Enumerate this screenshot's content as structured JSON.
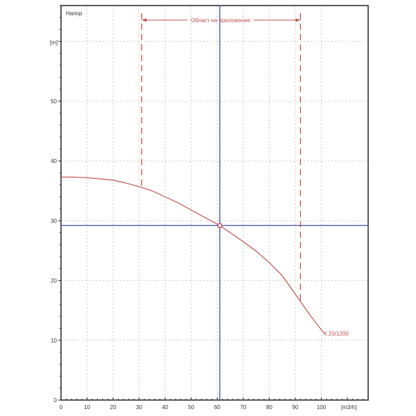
{
  "chart_data": {
    "type": "line",
    "title": "Напор",
    "ylabel": "[m]",
    "xlabel": "[m3/h]",
    "xlim": [
      0,
      118
    ],
    "ylim": [
      0,
      66
    ],
    "x_ticks": [
      0,
      10,
      20,
      30,
      40,
      50,
      60,
      70,
      80,
      90,
      100
    ],
    "y_ticks": [
      0,
      10,
      20,
      30,
      40,
      50
    ],
    "grid": true,
    "series": [
      {
        "name": "К 20/1200",
        "color": "#c0504d",
        "x": [
          0,
          5,
          10,
          15,
          20,
          25,
          30,
          35,
          40,
          45,
          50,
          55,
          61,
          65,
          70,
          75,
          80,
          85,
          92,
          96,
          101
        ],
        "y": [
          37.3,
          37.3,
          37.2,
          37.0,
          36.8,
          36.3,
          35.7,
          35.0,
          34.0,
          33.0,
          31.8,
          30.6,
          29.2,
          28.0,
          26.5,
          24.9,
          23.0,
          20.8,
          16.5,
          14.0,
          11.2
        ]
      }
    ],
    "operating_point": {
      "x": 61,
      "y": 29.2,
      "color": "#3d4aa0"
    },
    "application_range": {
      "label": "Област на приложение",
      "x_min": 31,
      "x_max": 92,
      "color": "#c0504d"
    }
  }
}
